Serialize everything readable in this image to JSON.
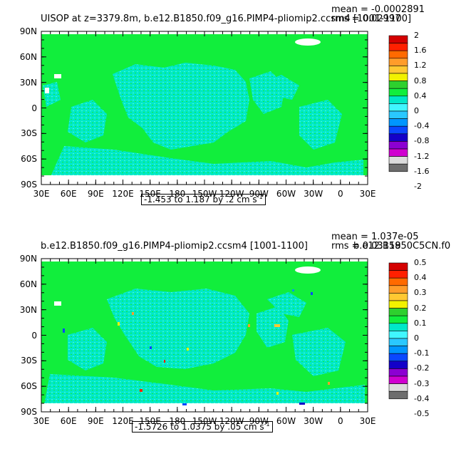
{
  "panels": [
    {
      "title": "UISOP at z=3379.8m, b.e12.B1850.f09_g16.PIMP4-pliomip2.ccsm4 [1001-1100]",
      "mean": "mean = -0.0002891",
      "rms": "rms = 0.02997",
      "range_text": "-1.453 to 1.187 by .2 cm s",
      "range_unit_exp": "-1",
      "colorbar_labels": [
        "2",
        "1.6",
        "1.2",
        "0.8",
        "0.4",
        "0",
        "-0.4",
        "-0.8",
        "-1.2",
        "-1.6",
        "-2"
      ]
    },
    {
      "title": "b.e12.B1850.f09_g16.PIMP4-pliomip2.ccsm4 [1001-1100]",
      "title_right": "b.e12.B1850C5CN.f0",
      "mean": "mean = 1.037e-05",
      "rms": "rms = 0.03159",
      "range_text": "-1.5726 to 1.0375 by .05 cm s",
      "range_unit_exp": "-1",
      "colorbar_labels": [
        "0.5",
        "0.4",
        "0.3",
        "0.2",
        "0.1",
        "0",
        "-0.1",
        "-0.2",
        "-0.3",
        "-0.4",
        "-0.5"
      ]
    }
  ],
  "axes": {
    "lat_labels": [
      "90N",
      "60N",
      "30N",
      "0",
      "30S",
      "60S",
      "90S"
    ],
    "lon_labels": [
      "30E",
      "60E",
      "90E",
      "120E",
      "150E",
      "180",
      "150W",
      "120W",
      "90W",
      "60W",
      "30W",
      "0",
      "30E"
    ]
  },
  "colors": {
    "land": "#11ee3c",
    "ocean": "#00e8c8",
    "ocean_light": "#48ffd8",
    "no_data": "#ffffff",
    "colorbar": [
      "#d40000",
      "#ff2000",
      "#ff6a00",
      "#ff9c2a",
      "#ffc832",
      "#f2f200",
      "#2ed02e",
      "#11ee3c",
      "#00e8c8",
      "#40f6ff",
      "#2ac8ff",
      "#0096ff",
      "#0a48ff",
      "#1400c8",
      "#8c00d2",
      "#d000d0",
      "#dcdcdc",
      "#6e6e6e"
    ]
  }
}
